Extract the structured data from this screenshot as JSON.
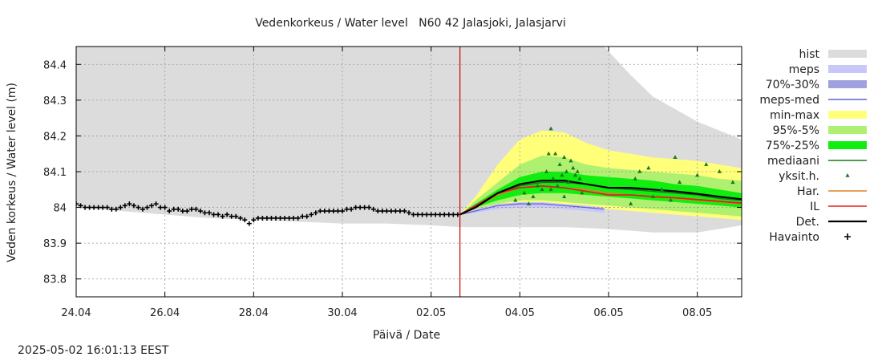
{
  "chart_data": {
    "type": "line",
    "title": "Vedenkorkeus / Water level   N60 42 Jalasjoki, Jalasjarvi",
    "xlabel": "Päivä / Date",
    "ylabel": "Veden korkeus / Water level (m)",
    "timestamp": "2025-05-02 16:01:13 EEST",
    "xlim": [
      0,
      15
    ],
    "ylim": [
      83.75,
      84.45
    ],
    "grid": true,
    "legend_position": "right",
    "x_ticks": [
      {
        "x": 0,
        "label": "24.04"
      },
      {
        "x": 2,
        "label": "26.04"
      },
      {
        "x": 4,
        "label": "28.04"
      },
      {
        "x": 6,
        "label": "30.04"
      },
      {
        "x": 8,
        "label": "02.05"
      },
      {
        "x": 10,
        "label": "04.05"
      },
      {
        "x": 12,
        "label": "06.05"
      },
      {
        "x": 14,
        "label": "08.05"
      }
    ],
    "y_ticks": [
      {
        "y": 83.8,
        "label": "83.8"
      },
      {
        "y": 83.9,
        "label": "83.9"
      },
      {
        "y": 84.0,
        "label": "84"
      },
      {
        "y": 84.1,
        "label": "84.1"
      },
      {
        "y": 84.2,
        "label": "84.2"
      },
      {
        "y": 84.3,
        "label": "84.3"
      },
      {
        "y": 84.4,
        "label": "84.4"
      }
    ],
    "now_x": 8.65,
    "colors": {
      "hist": "#dcdcdc",
      "meps": "#c8c8f8",
      "p70_30": "#a0a0e0",
      "meps_med": "#6060d0",
      "min_max": "#ffff7a",
      "p95_5": "#b0f070",
      "p75_25": "#10ee10",
      "mediaani": "#1a7a1a",
      "yksit": "#1a7a1a",
      "har": "#e08020",
      "il": "#e02020",
      "det": "#000000",
      "havainto": "#000000",
      "now_line": "#cc0000"
    },
    "legend": [
      {
        "key": "hist",
        "label": "hist",
        "style": "band"
      },
      {
        "key": "meps",
        "label": "meps",
        "style": "band"
      },
      {
        "key": "p70_30",
        "label": "70%-30%",
        "style": "band"
      },
      {
        "key": "meps_med",
        "label": "meps-med",
        "style": "line"
      },
      {
        "key": "min_max",
        "label": "min-max",
        "style": "band"
      },
      {
        "key": "p95_5",
        "label": "95%-5%",
        "style": "band"
      },
      {
        "key": "p75_25",
        "label": "75%-25%",
        "style": "band"
      },
      {
        "key": "mediaani",
        "label": "mediaani",
        "style": "line"
      },
      {
        "key": "yksit",
        "label": "yksit.h.",
        "style": "tri"
      },
      {
        "key": "har",
        "label": "Har.",
        "style": "line"
      },
      {
        "key": "il",
        "label": "IL",
        "style": "line"
      },
      {
        "key": "det",
        "label": "Det.",
        "style": "thickline"
      },
      {
        "key": "havainto",
        "label": "Havainto",
        "style": "plus"
      }
    ],
    "hist_band": {
      "x": [
        0,
        0.5,
        1,
        2,
        3,
        4,
        5,
        6,
        7,
        8,
        8.65,
        9,
        10,
        11,
        11.9,
        12.5,
        13,
        14,
        15
      ],
      "upper": [
        84.45,
        84.45,
        84.45,
        84.45,
        84.45,
        84.45,
        84.45,
        84.45,
        84.45,
        84.45,
        84.45,
        84.45,
        84.45,
        84.45,
        84.45,
        84.37,
        84.31,
        84.24,
        84.19
      ],
      "lower": [
        84.0,
        83.995,
        83.99,
        83.98,
        83.97,
        83.965,
        83.96,
        83.955,
        83.955,
        83.95,
        83.945,
        83.945,
        83.945,
        83.945,
        83.94,
        83.935,
        83.93,
        83.93,
        83.95
      ]
    },
    "min_max_band": {
      "x": [
        8.65,
        9.0,
        9.5,
        10.0,
        10.5,
        11.0,
        11.5,
        12.0,
        12.5,
        13.0,
        13.5,
        14.0,
        14.5,
        15.0
      ],
      "upper": [
        83.98,
        84.03,
        84.12,
        84.19,
        84.215,
        84.21,
        84.18,
        84.16,
        84.15,
        84.14,
        84.135,
        84.13,
        84.12,
        84.11
      ],
      "lower": [
        83.98,
        83.99,
        84.0,
        84.01,
        84.01,
        84.005,
        84.0,
        83.995,
        83.99,
        83.985,
        83.98,
        83.975,
        83.97,
        83.965
      ]
    },
    "p95_5_band": {
      "x": [
        8.65,
        9.0,
        9.5,
        10.0,
        10.5,
        11.0,
        11.5,
        12.0,
        12.5,
        13.0,
        13.5,
        14.0,
        14.5,
        15.0
      ],
      "upper": [
        83.98,
        84.02,
        84.07,
        84.12,
        84.145,
        84.14,
        84.12,
        84.11,
        84.105,
        84.1,
        84.095,
        84.09,
        84.08,
        84.075
      ],
      "lower": [
        83.98,
        83.995,
        84.01,
        84.02,
        84.02,
        84.015,
        84.01,
        84.005,
        84.0,
        83.995,
        83.99,
        83.985,
        83.98,
        83.975
      ]
    },
    "p75_25_band": {
      "x": [
        8.65,
        9.0,
        9.5,
        10.0,
        10.5,
        11.0,
        11.5,
        12.0,
        12.5,
        13.0,
        13.5,
        14.0,
        14.5,
        15.0
      ],
      "upper": [
        83.98,
        84.01,
        84.05,
        84.085,
        84.1,
        84.1,
        84.09,
        84.085,
        84.08,
        84.075,
        84.065,
        84.06,
        84.05,
        84.04
      ],
      "lower": [
        83.98,
        84.0,
        84.02,
        84.035,
        84.04,
        84.04,
        84.035,
        84.03,
        84.025,
        84.02,
        84.015,
        84.01,
        84.005,
        84.0
      ]
    },
    "meps_band": {
      "x": [
        8.65,
        9.0,
        9.5,
        10.0,
        10.5,
        11.0,
        11.5,
        11.9
      ],
      "upper": [
        83.98,
        83.995,
        84.01,
        84.015,
        84.015,
        84.01,
        84.005,
        84.0
      ],
      "lower": [
        83.98,
        83.985,
        83.995,
        84.0,
        84.0,
        83.995,
        83.99,
        83.985
      ]
    },
    "meps_med_line": {
      "x": [
        8.65,
        9.0,
        9.5,
        10.0,
        10.5,
        11.0,
        11.5,
        11.9
      ],
      "y": [
        83.98,
        83.99,
        84.005,
        84.01,
        84.01,
        84.005,
        84.0,
        83.995
      ]
    },
    "mediaani_line": {
      "x": [
        8.65,
        9.0,
        9.5,
        10.0,
        10.5,
        11.0,
        11.5,
        12.0,
        12.5,
        13.0,
        13.5,
        14.0,
        14.5,
        15.0
      ],
      "y": [
        83.98,
        84.0,
        84.035,
        84.06,
        84.07,
        84.07,
        84.065,
        84.055,
        84.05,
        84.045,
        84.04,
        84.035,
        84.025,
        84.02
      ]
    },
    "har_line": {
      "x": [
        8.65,
        9.0,
        9.5,
        10.0,
        10.5,
        11.0,
        11.5,
        12.0,
        12.5,
        13.0,
        13.5,
        14.0,
        14.5,
        15.0
      ],
      "y": [
        83.98,
        84.0,
        84.035,
        84.055,
        84.06,
        84.055,
        84.05,
        84.04,
        84.035,
        84.03,
        84.025,
        84.02,
        84.015,
        84.01
      ]
    },
    "il_line": {
      "x": [
        8.65,
        9.0,
        9.5,
        10.0,
        10.5,
        11.0,
        11.5,
        12.0,
        12.5,
        13.0,
        13.5,
        14.0,
        14.5,
        15.0
      ],
      "y": [
        83.98,
        84.005,
        84.04,
        84.055,
        84.06,
        84.055,
        84.045,
        84.035,
        84.035,
        84.03,
        84.027,
        84.022,
        84.017,
        84.012
      ]
    },
    "det_line": {
      "x": [
        8.65,
        9.0,
        9.5,
        10.0,
        10.5,
        11.0,
        11.5,
        12.0,
        12.5,
        13.0,
        13.5,
        14.0,
        14.5,
        15.0
      ],
      "y": [
        83.98,
        84.0,
        84.04,
        84.065,
        84.075,
        84.075,
        84.065,
        84.055,
        84.055,
        84.05,
        84.045,
        84.038,
        84.03,
        84.023
      ]
    },
    "observations": {
      "x": [
        0.0,
        0.1,
        0.2,
        0.3,
        0.4,
        0.5,
        0.6,
        0.7,
        0.8,
        0.9,
        1.0,
        1.1,
        1.2,
        1.3,
        1.4,
        1.5,
        1.6,
        1.7,
        1.8,
        1.9,
        2.0,
        2.1,
        2.2,
        2.3,
        2.4,
        2.5,
        2.6,
        2.7,
        2.8,
        2.9,
        3.0,
        3.1,
        3.2,
        3.3,
        3.4,
        3.5,
        3.6,
        3.7,
        3.8,
        3.9,
        4.0,
        4.1,
        4.2,
        4.3,
        4.4,
        4.5,
        4.6,
        4.7,
        4.8,
        4.9,
        5.0,
        5.1,
        5.2,
        5.3,
        5.4,
        5.5,
        5.6,
        5.7,
        5.8,
        5.9,
        6.0,
        6.1,
        6.2,
        6.3,
        6.4,
        6.5,
        6.6,
        6.7,
        6.8,
        6.9,
        7.0,
        7.1,
        7.2,
        7.3,
        7.4,
        7.5,
        7.6,
        7.7,
        7.8,
        7.9,
        8.0,
        8.1,
        8.2,
        8.3,
        8.4,
        8.5,
        8.6
      ],
      "y": [
        84.01,
        84.005,
        84.0,
        84.0,
        84.0,
        84.0,
        84.0,
        84.0,
        83.995,
        83.995,
        84.0,
        84.005,
        84.01,
        84.005,
        84.0,
        83.995,
        84.0,
        84.005,
        84.01,
        84.0,
        84.0,
        83.99,
        83.995,
        83.995,
        83.99,
        83.99,
        83.995,
        83.995,
        83.99,
        83.985,
        83.985,
        83.98,
        83.98,
        83.975,
        83.98,
        83.975,
        83.975,
        83.97,
        83.965,
        83.955,
        83.965,
        83.97,
        83.97,
        83.97,
        83.97,
        83.97,
        83.97,
        83.97,
        83.97,
        83.97,
        83.97,
        83.975,
        83.975,
        83.98,
        83.985,
        83.99,
        83.99,
        83.99,
        83.99,
        83.99,
        83.99,
        83.995,
        83.995,
        84.0,
        84.0,
        84.0,
        84.0,
        83.995,
        83.99,
        83.99,
        83.99,
        83.99,
        83.99,
        83.99,
        83.99,
        83.985,
        83.98,
        83.98,
        83.98,
        83.98,
        83.98,
        83.98,
        83.98,
        83.98,
        83.98,
        83.98,
        83.98
      ]
    },
    "members": {
      "x": [
        9.9,
        10.1,
        10.3,
        10.5,
        10.6,
        10.65,
        10.7,
        10.75,
        10.8,
        10.85,
        10.9,
        10.95,
        11.0,
        11.05,
        11.1,
        11.15,
        11.2,
        11.25,
        11.3,
        11.35,
        10.2,
        10.4,
        10.7,
        11.0,
        11.4,
        12.5,
        12.6,
        12.7,
        12.9,
        13.0,
        13.2,
        13.4,
        13.5,
        13.6,
        14.0,
        14.2,
        14.5,
        14.8
      ],
      "y": [
        84.02,
        84.04,
        84.03,
        84.05,
        84.1,
        84.15,
        84.22,
        84.08,
        84.15,
        84.06,
        84.12,
        84.09,
        84.14,
        84.1,
        84.07,
        84.13,
        84.11,
        84.09,
        84.1,
        84.08,
        84.01,
        84.06,
        84.05,
        84.03,
        84.04,
        84.01,
        84.08,
        84.1,
        84.11,
        84.03,
        84.05,
        84.02,
        84.14,
        84.07,
        84.09,
        84.12,
        84.1,
        84.07
      ]
    }
  }
}
